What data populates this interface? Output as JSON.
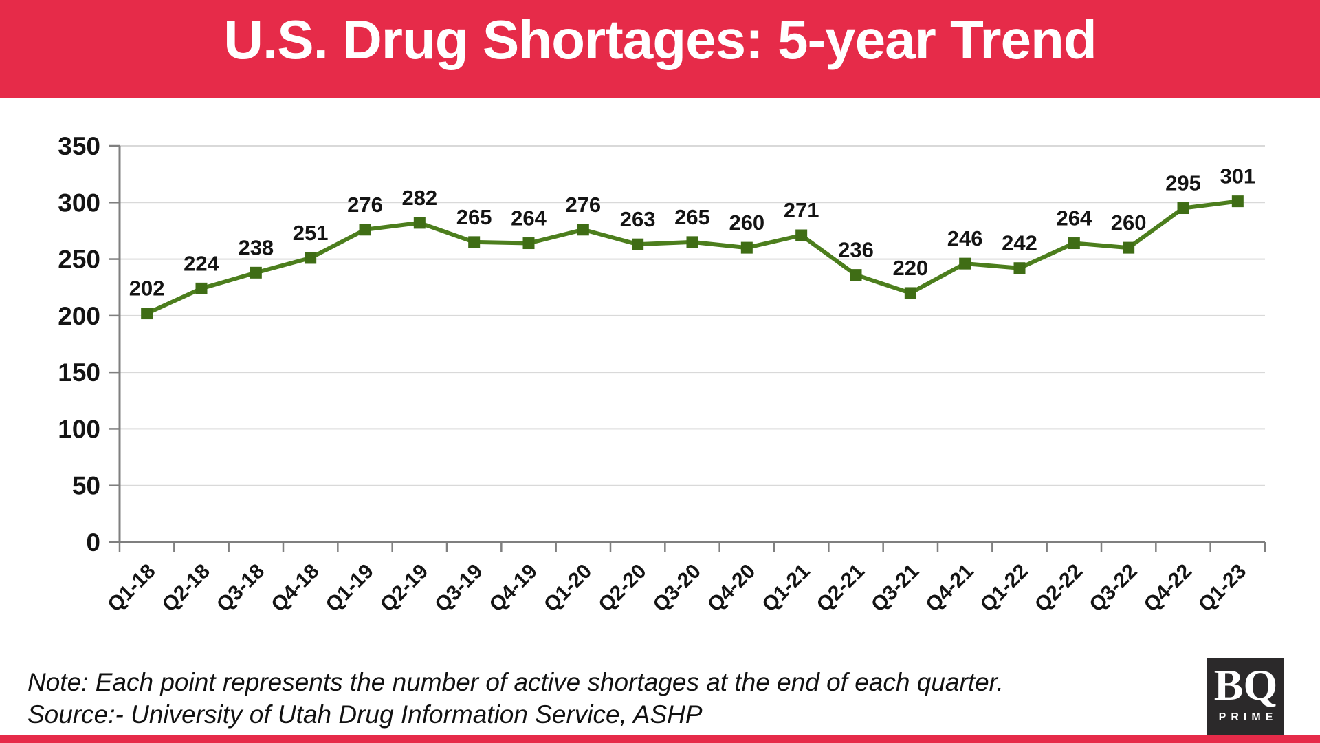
{
  "header": {
    "title": "U.S. Drug Shortages: 5-year Trend"
  },
  "chart_data": {
    "type": "line",
    "categories": [
      "Q1-18",
      "Q2-18",
      "Q3-18",
      "Q4-18",
      "Q1-19",
      "Q2-19",
      "Q3-19",
      "Q4-19",
      "Q1-20",
      "Q2-20",
      "Q3-20",
      "Q4-20",
      "Q1-21",
      "Q2-21",
      "Q3-21",
      "Q4-21",
      "Q1-22",
      "Q2-22",
      "Q3-22",
      "Q4-22",
      "Q1-23"
    ],
    "values": [
      202,
      224,
      238,
      251,
      276,
      282,
      265,
      264,
      276,
      263,
      265,
      260,
      271,
      236,
      220,
      246,
      242,
      264,
      260,
      295,
      301
    ],
    "ylim": [
      0,
      350
    ],
    "ytick_step": 50,
    "yticks": [
      0,
      50,
      100,
      150,
      200,
      250,
      300,
      350
    ],
    "grid": true,
    "legend": "none",
    "marker": "square",
    "data_labels": true,
    "xlabel": "",
    "ylabel": ""
  },
  "footer": {
    "note": "Note: Each point represents the number of active shortages at the end of each quarter.",
    "source": "Source:- University of Utah Drug Information Service, ASHP"
  },
  "logo": {
    "line1": "BQ",
    "line2": "PRIME"
  },
  "colors": {
    "banner_red": "#e62b49",
    "line_green": "#4c7e1d",
    "marker_green": "#3f6d15",
    "grid_gray": "#d9d9d9",
    "axis_gray": "#7f7f7f",
    "text_black": "#141414",
    "logo_bg": "#2b292a"
  }
}
